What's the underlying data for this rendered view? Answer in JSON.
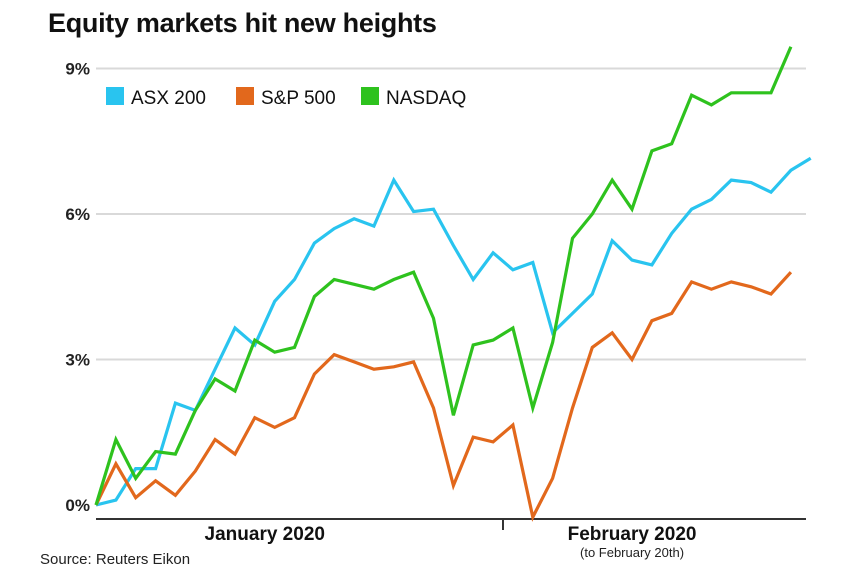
{
  "chart_data": {
    "type": "line",
    "title": "Equity markets hit new heights",
    "source": "Source: Reuters Eikon",
    "ylim": [
      0,
      9.5
    ],
    "yticks": [
      0,
      3,
      6,
      9
    ],
    "ytick_labels": [
      "0%",
      "3%",
      "6%",
      "9%"
    ],
    "grid": true,
    "legend_position": "top-left",
    "x_month_labels": [
      {
        "label": "January 2020",
        "note": "",
        "at": 8.5
      },
      {
        "label": "February 2020",
        "note": "(to February 20th)",
        "at": 27
      }
    ],
    "month_divider_at": 20.5,
    "x_max": 34,
    "series": [
      {
        "name": "ASX 200",
        "color": "#29c4ef",
        "values": [
          0.0,
          0.1,
          0.75,
          0.75,
          2.1,
          1.95,
          2.8,
          3.65,
          3.3,
          4.2,
          4.65,
          5.4,
          5.7,
          5.9,
          5.75,
          6.7,
          6.05,
          6.1,
          5.35,
          4.65,
          5.2,
          4.85,
          5.0,
          3.55,
          3.95,
          4.35,
          5.45,
          5.05,
          4.95,
          5.6,
          6.1,
          6.3,
          6.7,
          6.65,
          6.45,
          6.9,
          7.15
        ]
      },
      {
        "name": "S&P 500",
        "color": "#e2681c",
        "values": [
          0.0,
          0.85,
          0.15,
          0.5,
          0.2,
          0.7,
          1.35,
          1.05,
          1.8,
          1.6,
          1.8,
          2.7,
          3.1,
          2.95,
          2.8,
          2.85,
          2.95,
          2.0,
          0.4,
          1.4,
          1.3,
          1.65,
          -0.25,
          0.55,
          2.0,
          3.25,
          3.55,
          3.0,
          3.8,
          3.95,
          4.6,
          4.45,
          4.6,
          4.5,
          4.35,
          4.8
        ]
      },
      {
        "name": "NASDAQ",
        "color": "#2ec21e",
        "values": [
          0.0,
          1.35,
          0.55,
          1.1,
          1.05,
          1.95,
          2.6,
          2.35,
          3.4,
          3.15,
          3.25,
          4.3,
          4.65,
          4.55,
          4.45,
          4.65,
          4.8,
          3.85,
          1.85,
          3.3,
          3.4,
          3.65,
          2.0,
          3.35,
          5.5,
          6.0,
          6.7,
          6.1,
          7.3,
          7.45,
          8.45,
          8.25,
          8.5,
          8.5,
          8.5,
          9.45
        ]
      }
    ]
  }
}
